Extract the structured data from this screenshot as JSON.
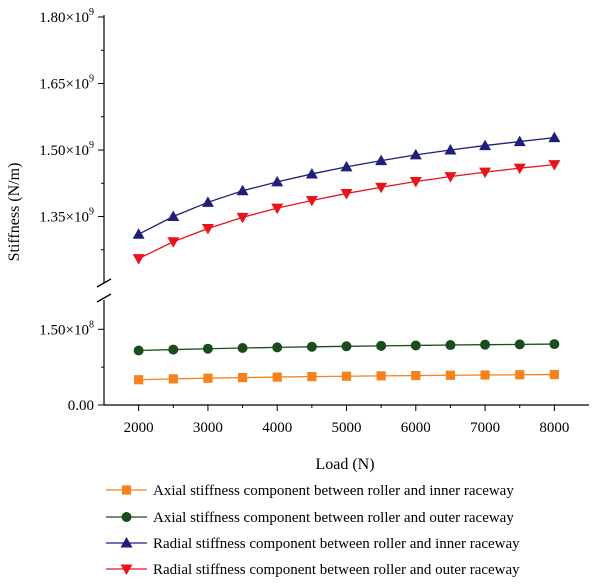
{
  "chart_data": {
    "type": "line",
    "xlabel": "Load (N)",
    "ylabel": "Stiffness (N/m)",
    "x": [
      2000,
      2500,
      3000,
      3500,
      4000,
      4500,
      5000,
      5500,
      6000,
      6500,
      7000,
      7500,
      8000
    ],
    "xlim": [
      1500,
      8500
    ],
    "xticks": [
      "2000",
      "3000",
      "4000",
      "5000",
      "6000",
      "7000",
      "8000"
    ],
    "broken_y_axis": true,
    "ylim_lower": [
      0,
      210000000
    ],
    "ylim_upper": [
      1200000000,
      1800000000
    ],
    "yticks_lower": [
      {
        "value": 0,
        "mantissa": "0.00",
        "exp": ""
      },
      {
        "value": 150000000,
        "mantissa": "1.50×10",
        "exp": "8"
      }
    ],
    "yticks_upper": [
      {
        "value": 1350000000,
        "mantissa": "1.35×10",
        "exp": "9"
      },
      {
        "value": 1500000000,
        "mantissa": "1.50×10",
        "exp": "9"
      },
      {
        "value": 1650000000,
        "mantissa": "1.65×10",
        "exp": "9"
      },
      {
        "value": 1800000000,
        "mantissa": "1.80×10",
        "exp": "9"
      }
    ],
    "series": [
      {
        "name": "Axial stiffness component between roller and inner raceway",
        "color": "#f5821f",
        "marker": "square",
        "values": [
          50000000,
          51700000,
          53100000,
          54300000,
          55300000,
          56200000,
          57000000,
          57700000,
          58300000,
          58900000,
          59400000,
          59900000,
          60300000
        ]
      },
      {
        "name": "Axial stiffness component between roller and outer raceway",
        "color": "#1b4d1b",
        "marker": "circle",
        "values": [
          108000000,
          109800000,
          111500000,
          112900000,
          114200000,
          115300000,
          116300000,
          117200000,
          118000000,
          118800000,
          119500000,
          120100000,
          120700000
        ]
      },
      {
        "name": "Radial stiffness component between roller and inner raceway",
        "color": "#1f1f7a",
        "marker": "triangle-up",
        "values": [
          1310000000,
          1350000000,
          1382000000,
          1408000000,
          1428000000,
          1446000000,
          1462000000,
          1476000000,
          1489000000,
          1500000000,
          1510000000,
          1519000000,
          1528000000
        ]
      },
      {
        "name": "Radial stiffness component between roller and outer raceway",
        "color": "#e8141b",
        "marker": "triangle-down",
        "values": [
          1255000000,
          1293000000,
          1323000000,
          1348000000,
          1369000000,
          1386000000,
          1402000000,
          1416000000,
          1429000000,
          1440000000,
          1450000000,
          1459000000,
          1467000000
        ]
      }
    ],
    "legend_position": "bottom"
  }
}
